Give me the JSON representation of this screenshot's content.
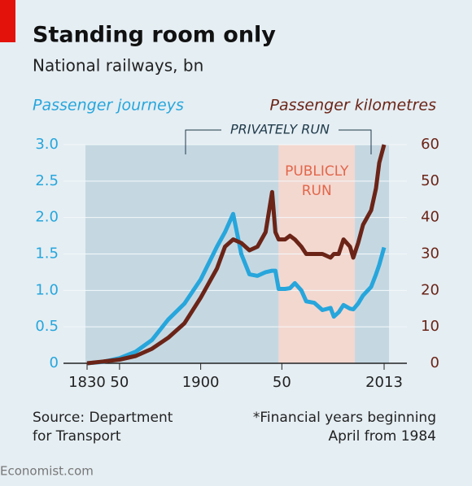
{
  "chart_data": {
    "type": "line",
    "title": "Standing room only",
    "subtitle": "National railways, bn",
    "ylabel": "Passenger journeys",
    "y2label": "Passenger kilometres",
    "x": [
      1830,
      1840,
      1850,
      1860,
      1870,
      1880,
      1890,
      1900,
      1910,
      1915,
      1920,
      1925,
      1930,
      1935,
      1940,
      1944,
      1946,
      1948,
      1952,
      1955,
      1958,
      1962,
      1965,
      1970,
      1975,
      1980,
      1982,
      1985,
      1988,
      1992,
      1994,
      1997,
      2000,
      2005,
      2008,
      2010,
      2013
    ],
    "series": [
      {
        "name": "Passenger journeys",
        "color": "#27a6dc",
        "values": [
          0.0,
          0.02,
          0.07,
          0.16,
          0.32,
          0.6,
          0.82,
          1.15,
          1.6,
          1.8,
          2.05,
          1.5,
          1.22,
          1.2,
          1.25,
          1.27,
          1.27,
          1.02,
          1.02,
          1.03,
          1.1,
          1.0,
          0.85,
          0.83,
          0.73,
          0.76,
          0.64,
          0.7,
          0.8,
          0.75,
          0.74,
          0.82,
          0.93,
          1.05,
          1.22,
          1.35,
          1.59
        ]
      },
      {
        "name": "Passenger kilometres",
        "color": "#6b2417",
        "axis": "y2",
        "values": [
          0,
          0.5,
          1,
          2,
          4,
          7,
          11,
          18,
          26,
          32,
          34,
          33,
          31,
          32,
          36,
          47,
          36,
          34,
          34,
          35,
          34,
          32,
          30,
          30,
          30,
          29,
          30,
          30,
          34,
          32,
          29,
          33,
          38,
          42,
          48,
          55,
          60
        ]
      }
    ],
    "xlim": [
      1829,
      2016
    ],
    "xticks": [
      {
        "value": 1830,
        "label": "1830"
      },
      {
        "value": 1850,
        "label": "50"
      },
      1900,
      {
        "value": 1950,
        "label": "50"
      },
      2013
    ],
    "ylim": [
      0,
      3.0
    ],
    "yticks": [
      0,
      0.5,
      {
        "value": 1,
        "label": "1.0"
      },
      1.5,
      {
        "value": 2,
        "label": "2.0"
      },
      2.5,
      {
        "value": 3,
        "label": "3.0"
      }
    ],
    "y2lim": [
      0,
      60
    ],
    "y2ticks": [
      0,
      10,
      20,
      30,
      40,
      50,
      60
    ],
    "grid": true,
    "periods": [
      {
        "start": 1829,
        "end": 1948,
        "color": "#c5d8e2"
      },
      {
        "start": 1948,
        "end": 1995,
        "color": "#f3d8d0"
      },
      {
        "start": 1995,
        "end": 2016,
        "color": "#c5d8e2"
      }
    ],
    "annotations": {
      "privately_run": "PRIVATELY RUN",
      "publicly_run": [
        "PUBLICLY",
        "RUN"
      ]
    },
    "source": [
      "Source: Department",
      "for Transport"
    ],
    "footnote": [
      "*Financial years beginning",
      "April from 1984"
    ],
    "brand": "Economist.com"
  }
}
